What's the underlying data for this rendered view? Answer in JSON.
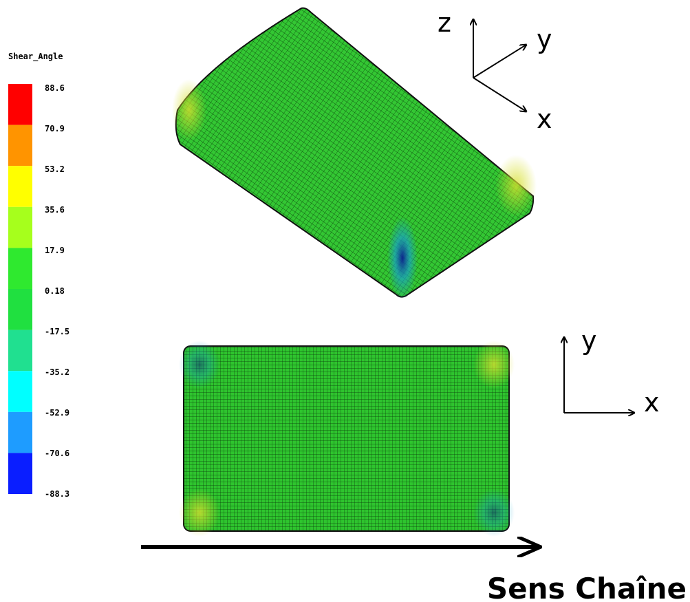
{
  "legend": {
    "title": "Shear_Angle",
    "labels": [
      "88.6",
      "70.9",
      "53.2",
      "35.6",
      "17.9",
      "0.18",
      "-17.5",
      "-35.2",
      "-52.9",
      "-70.6",
      "-88.3"
    ],
    "colors": [
      "#ff0000",
      "#ff9400",
      "#ffff00",
      "#a6ff1c",
      "#2fe92f",
      "#20e040",
      "#20e090",
      "#00ffff",
      "#1e9cff",
      "#0a1eff"
    ]
  },
  "axes_3d": {
    "z": "z",
    "y": "y",
    "x": "x"
  },
  "axes_2d": {
    "y": "y",
    "x": "x"
  },
  "caption": "Sens Chaîne"
}
